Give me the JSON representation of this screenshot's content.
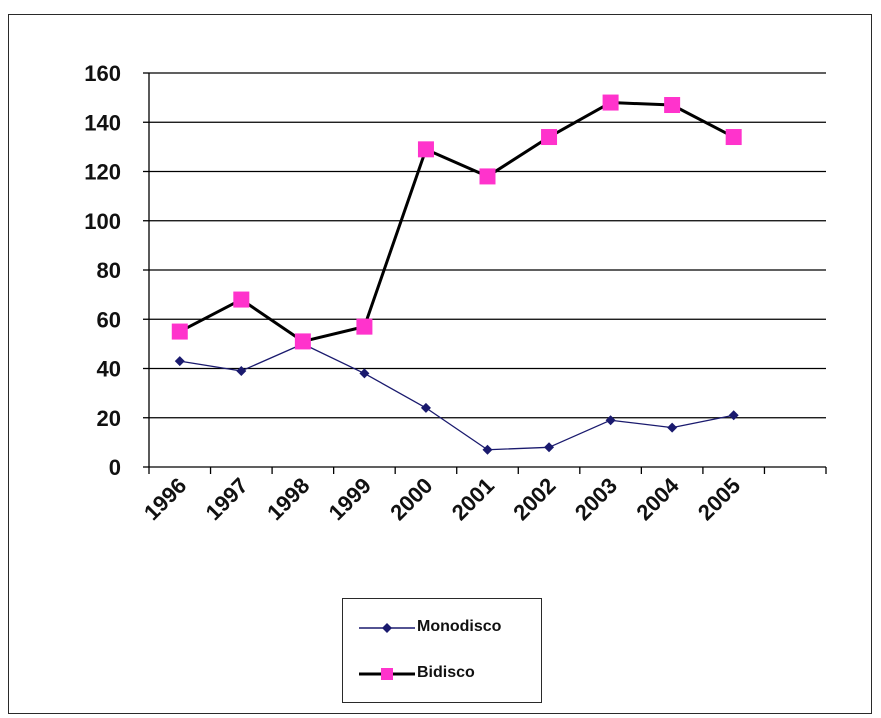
{
  "chart_data": {
    "type": "line",
    "title": "",
    "xlabel": "",
    "ylabel": "",
    "categories": [
      "1996",
      "1997",
      "1998",
      "1999",
      "2000",
      "2001",
      "2002",
      "2003",
      "2004",
      "2005"
    ],
    "ylim": [
      0,
      160
    ],
    "yticks": [
      0,
      20,
      40,
      60,
      80,
      100,
      120,
      140,
      160
    ],
    "grid": true,
    "legend_position": "bottom",
    "series": [
      {
        "name": "Monodisco",
        "color": "#1a1a6e",
        "marker": "diamond",
        "values": [
          43,
          39,
          50,
          38,
          24,
          7,
          8,
          19,
          16,
          21
        ]
      },
      {
        "name": "Bidisco",
        "color": "#000000",
        "marker_color": "#ff33cc",
        "marker": "square",
        "values": [
          55,
          68,
          51,
          57,
          129,
          118,
          134,
          148,
          147,
          134
        ]
      }
    ]
  }
}
